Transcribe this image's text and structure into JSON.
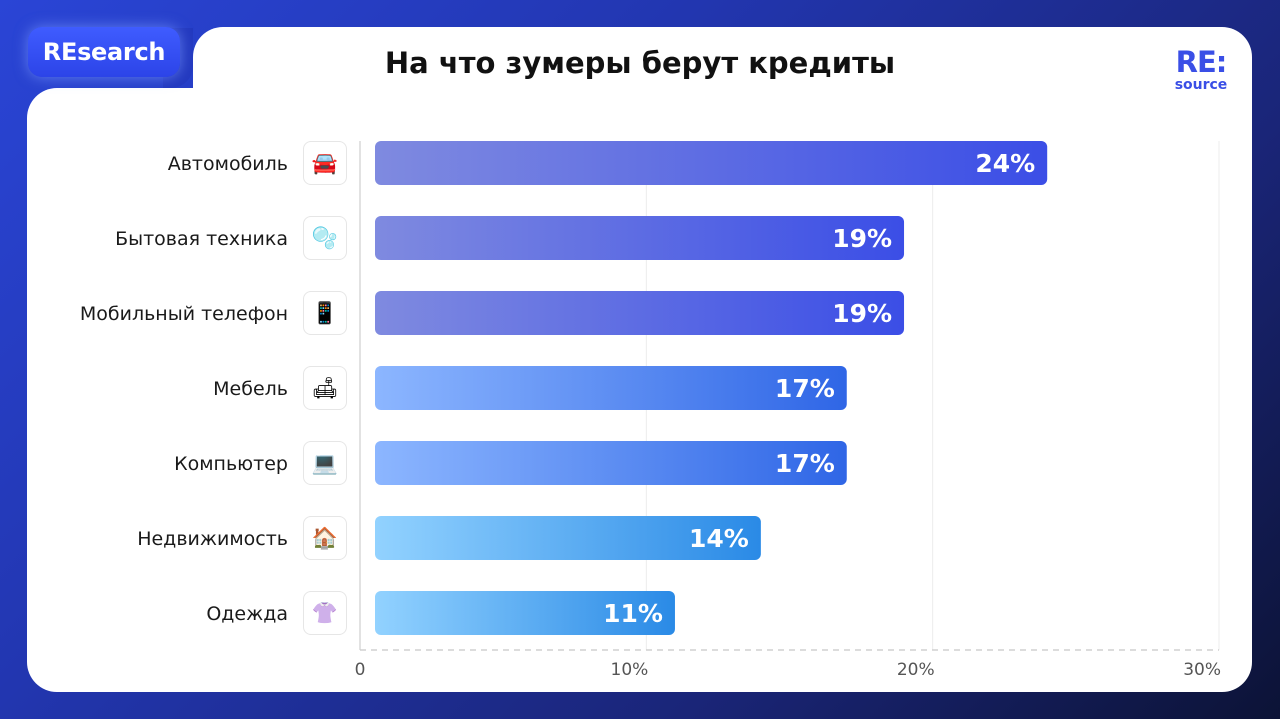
{
  "badge": "REsearch",
  "title": "На что зумеры берут кредиты",
  "logo": {
    "line1": "RE:",
    "line2": "source"
  },
  "chart_data": {
    "type": "bar",
    "orientation": "horizontal",
    "title": "На что зумеры берут кредиты",
    "categories": [
      "Автомобиль",
      "Бытовая техника",
      "Мобильный телефон",
      "Мебель",
      "Компьютер",
      "Недвижимость",
      "Одежда"
    ],
    "icons": [
      "car-icon",
      "washing-machine-icon",
      "mobile-phone-icon",
      "sofa-icon",
      "laptop-icon",
      "house-icon",
      "blouse-icon"
    ],
    "icon_glyphs": [
      "🚘",
      "🫧",
      "📱",
      "🛋",
      "💻",
      "🏠",
      "👚"
    ],
    "values": [
      24,
      19,
      19,
      17,
      17,
      14,
      11
    ],
    "value_labels": [
      "24%",
      "19%",
      "19%",
      "17%",
      "17%",
      "14%",
      "11%"
    ],
    "xlim": [
      0,
      30
    ],
    "x_ticks": [
      "0",
      "10%",
      "20%",
      "30%"
    ],
    "grid": true,
    "colors": [
      [
        "#7f8ae0",
        "#3b4ee6"
      ],
      [
        "#7f8ae0",
        "#3b4ee6"
      ],
      [
        "#7f8ae0",
        "#3b4ee6"
      ],
      [
        "#8cb6ff",
        "#2f66e6"
      ],
      [
        "#8cb6ff",
        "#2f66e6"
      ],
      [
        "#92d2ff",
        "#2a8ae6"
      ],
      [
        "#92d2ff",
        "#2a8ae6"
      ]
    ]
  }
}
